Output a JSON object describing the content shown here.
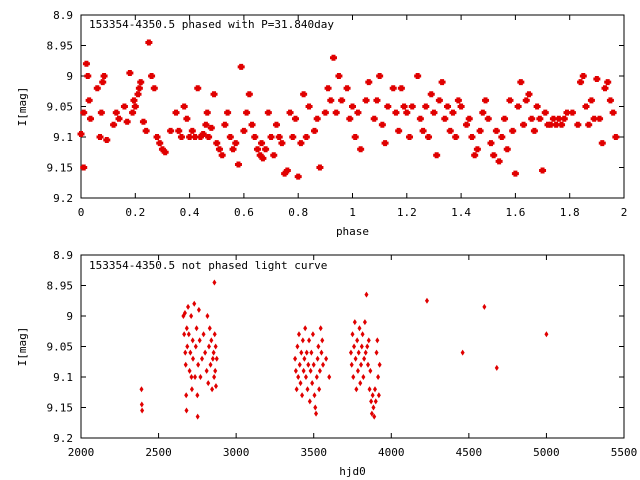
{
  "chart_data": [
    {
      "type": "scatter",
      "title": "153354-4350.5 phased with P=31.840day",
      "xlabel": "phase",
      "ylabel": "I[mag]",
      "xlim": [
        0,
        2
      ],
      "ylim": [
        8.9,
        9.2
      ],
      "y_inverted": true,
      "xticks": [
        "0",
        "0.2",
        "0.4",
        "0.6",
        "0.8",
        "1",
        "1.2",
        "1.4",
        "1.6",
        "1.8",
        "2"
      ],
      "yticks": [
        "8.9",
        "8.95",
        "9",
        "9.05",
        "9.1",
        "9.15",
        "9.2"
      ],
      "marker_color": "#e00000",
      "marker": "cross",
      "points": [
        [
          0.0,
          9.095
        ],
        [
          0.01,
          9.15
        ],
        [
          0.01,
          9.06
        ],
        [
          0.02,
          8.98
        ],
        [
          0.025,
          9.0
        ],
        [
          0.03,
          9.04
        ],
        [
          0.035,
          9.07
        ],
        [
          0.06,
          9.02
        ],
        [
          0.07,
          9.1
        ],
        [
          0.075,
          9.06
        ],
        [
          0.08,
          9.01
        ],
        [
          0.085,
          9.0
        ],
        [
          0.095,
          9.105
        ],
        [
          0.12,
          9.08
        ],
        [
          0.13,
          9.06
        ],
        [
          0.14,
          9.07
        ],
        [
          0.16,
          9.05
        ],
        [
          0.17,
          9.075
        ],
        [
          0.18,
          8.995
        ],
        [
          0.19,
          9.06
        ],
        [
          0.195,
          9.04
        ],
        [
          0.2,
          9.05
        ],
        [
          0.21,
          9.03
        ],
        [
          0.215,
          9.02
        ],
        [
          0.22,
          9.01
        ],
        [
          0.23,
          9.075
        ],
        [
          0.24,
          9.09
        ],
        [
          0.25,
          8.945
        ],
        [
          0.26,
          9.0
        ],
        [
          0.27,
          9.02
        ],
        [
          0.28,
          9.1
        ],
        [
          0.29,
          9.11
        ],
        [
          0.3,
          9.12
        ],
        [
          0.31,
          9.125
        ],
        [
          0.33,
          9.09
        ],
        [
          0.35,
          9.06
        ],
        [
          0.36,
          9.09
        ],
        [
          0.37,
          9.1
        ],
        [
          0.38,
          9.05
        ],
        [
          0.39,
          9.07
        ],
        [
          0.4,
          9.1
        ],
        [
          0.41,
          9.09
        ],
        [
          0.42,
          9.1
        ],
        [
          0.43,
          9.02
        ],
        [
          0.44,
          9.1
        ],
        [
          0.45,
          9.095
        ],
        [
          0.46,
          9.08
        ],
        [
          0.465,
          9.06
        ],
        [
          0.47,
          9.1
        ],
        [
          0.48,
          9.085
        ],
        [
          0.49,
          9.03
        ],
        [
          0.5,
          9.11
        ],
        [
          0.51,
          9.12
        ],
        [
          0.52,
          9.13
        ],
        [
          0.53,
          9.08
        ],
        [
          0.54,
          9.06
        ],
        [
          0.55,
          9.1
        ],
        [
          0.56,
          9.12
        ],
        [
          0.57,
          9.11
        ],
        [
          0.58,
          9.145
        ],
        [
          0.59,
          8.985
        ],
        [
          0.6,
          9.09
        ],
        [
          0.61,
          9.06
        ],
        [
          0.62,
          9.03
        ],
        [
          0.63,
          9.08
        ],
        [
          0.64,
          9.1
        ],
        [
          0.65,
          9.12
        ],
        [
          0.66,
          9.13
        ],
        [
          0.665,
          9.11
        ],
        [
          0.67,
          9.135
        ],
        [
          0.68,
          9.12
        ],
        [
          0.69,
          9.06
        ],
        [
          0.7,
          9.1
        ],
        [
          0.71,
          9.13
        ],
        [
          0.72,
          9.08
        ],
        [
          0.73,
          9.1
        ],
        [
          0.74,
          9.11
        ],
        [
          0.75,
          9.16
        ],
        [
          0.76,
          9.155
        ],
        [
          0.77,
          9.06
        ],
        [
          0.78,
          9.1
        ],
        [
          0.79,
          9.07
        ],
        [
          0.8,
          9.165
        ],
        [
          0.81,
          9.11
        ],
        [
          0.82,
          9.03
        ],
        [
          0.83,
          9.1
        ],
        [
          0.84,
          9.05
        ],
        [
          0.86,
          9.09
        ],
        [
          0.87,
          9.07
        ],
        [
          0.88,
          9.15
        ],
        [
          0.9,
          9.06
        ],
        [
          0.91,
          9.02
        ],
        [
          0.92,
          9.04
        ],
        [
          0.93,
          8.97
        ],
        [
          0.94,
          9.06
        ],
        [
          0.95,
          9.0
        ],
        [
          0.96,
          9.04
        ],
        [
          0.98,
          9.02
        ],
        [
          0.99,
          9.07
        ],
        [
          1.0,
          9.05
        ],
        [
          1.01,
          9.1
        ],
        [
          1.02,
          9.06
        ],
        [
          1.03,
          9.12
        ],
        [
          1.05,
          9.04
        ],
        [
          1.06,
          9.01
        ],
        [
          1.08,
          9.07
        ],
        [
          1.09,
          9.04
        ],
        [
          1.1,
          9.0
        ],
        [
          1.11,
          9.08
        ],
        [
          1.12,
          9.11
        ],
        [
          1.13,
          9.05
        ],
        [
          1.15,
          9.02
        ],
        [
          1.16,
          9.06
        ],
        [
          1.17,
          9.09
        ],
        [
          1.18,
          9.02
        ],
        [
          1.19,
          9.05
        ],
        [
          1.2,
          9.06
        ],
        [
          1.21,
          9.1
        ],
        [
          1.22,
          9.05
        ],
        [
          1.24,
          9.0
        ],
        [
          1.25,
          9.07
        ],
        [
          1.26,
          9.09
        ],
        [
          1.27,
          9.05
        ],
        [
          1.28,
          9.1
        ],
        [
          1.29,
          9.03
        ],
        [
          1.3,
          9.06
        ],
        [
          1.31,
          9.13
        ],
        [
          1.32,
          9.04
        ],
        [
          1.33,
          9.01
        ],
        [
          1.34,
          9.07
        ],
        [
          1.35,
          9.05
        ],
        [
          1.36,
          9.09
        ],
        [
          1.37,
          9.06
        ],
        [
          1.38,
          9.1
        ],
        [
          1.39,
          9.04
        ],
        [
          1.4,
          9.05
        ],
        [
          1.42,
          9.08
        ],
        [
          1.43,
          9.07
        ],
        [
          1.44,
          9.1
        ],
        [
          1.45,
          9.13
        ],
        [
          1.46,
          9.12
        ],
        [
          1.47,
          9.09
        ],
        [
          1.48,
          9.06
        ],
        [
          1.49,
          9.04
        ],
        [
          1.5,
          9.07
        ],
        [
          1.51,
          9.11
        ],
        [
          1.52,
          9.13
        ],
        [
          1.53,
          9.09
        ],
        [
          1.54,
          9.14
        ],
        [
          1.55,
          9.1
        ],
        [
          1.56,
          9.07
        ],
        [
          1.57,
          9.12
        ],
        [
          1.58,
          9.04
        ],
        [
          1.59,
          9.09
        ],
        [
          1.6,
          9.16
        ],
        [
          1.61,
          9.05
        ],
        [
          1.62,
          9.01
        ],
        [
          1.63,
          9.08
        ],
        [
          1.64,
          9.04
        ],
        [
          1.65,
          9.03
        ],
        [
          1.66,
          9.07
        ],
        [
          1.67,
          9.09
        ],
        [
          1.68,
          9.05
        ],
        [
          1.69,
          9.07
        ],
        [
          1.7,
          9.155
        ],
        [
          1.71,
          9.06
        ],
        [
          1.72,
          9.08
        ],
        [
          1.73,
          9.08
        ],
        [
          1.74,
          9.07
        ],
        [
          1.75,
          9.08
        ],
        [
          1.76,
          9.07
        ],
        [
          1.77,
          9.08
        ],
        [
          1.78,
          9.07
        ],
        [
          1.79,
          9.06
        ],
        [
          1.81,
          9.06
        ],
        [
          1.83,
          9.08
        ],
        [
          1.84,
          9.01
        ],
        [
          1.85,
          9.0
        ],
        [
          1.86,
          9.05
        ],
        [
          1.87,
          9.08
        ],
        [
          1.88,
          9.04
        ],
        [
          1.89,
          9.07
        ],
        [
          1.9,
          9.005
        ],
        [
          1.91,
          9.07
        ],
        [
          1.92,
          9.11
        ],
        [
          1.93,
          9.02
        ],
        [
          1.94,
          9.01
        ],
        [
          1.95,
          9.04
        ],
        [
          1.96,
          9.06
        ],
        [
          1.97,
          9.1
        ]
      ]
    },
    {
      "type": "scatter",
      "title": "153354-4350.5 not phased light curve",
      "xlabel": "hjd0",
      "ylabel": "I[mag]",
      "xlim": [
        2000,
        5500
      ],
      "ylim": [
        8.9,
        9.2
      ],
      "y_inverted": true,
      "xticks": [
        "2000",
        "2500",
        "3000",
        "3500",
        "4000",
        "4500",
        "5000",
        "5500"
      ],
      "yticks": [
        "8.9",
        "8.95",
        "9",
        "9.05",
        "9.1",
        "9.15",
        "9.2"
      ],
      "marker_color": "#e00000",
      "marker": "diamond",
      "points": [
        [
          2390,
          9.12
        ],
        [
          2392,
          9.145
        ],
        [
          2394,
          9.155
        ],
        [
          2660,
          9.0
        ],
        [
          2665,
          9.03
        ],
        [
          2670,
          8.995
        ],
        [
          2672,
          9.06
        ],
        [
          2675,
          9.08
        ],
        [
          2678,
          9.13
        ],
        [
          2680,
          9.155
        ],
        [
          2682,
          9.02
        ],
        [
          2685,
          9.05
        ],
        [
          2690,
          8.985
        ],
        [
          2695,
          9.03
        ],
        [
          2700,
          9.09
        ],
        [
          2705,
          9.06
        ],
        [
          2710,
          9.0
        ],
        [
          2712,
          9.1
        ],
        [
          2715,
          9.12
        ],
        [
          2720,
          9.04
        ],
        [
          2722,
          9.07
        ],
        [
          2730,
          8.98
        ],
        [
          2735,
          9.1
        ],
        [
          2740,
          9.05
        ],
        [
          2745,
          9.02
        ],
        [
          2750,
          9.13
        ],
        [
          2752,
          9.165
        ],
        [
          2755,
          9.08
        ],
        [
          2760,
          8.99
        ],
        [
          2765,
          9.04
        ],
        [
          2770,
          9.1
        ],
        [
          2780,
          9.07
        ],
        [
          2790,
          9.03
        ],
        [
          2800,
          9.06
        ],
        [
          2810,
          9.09
        ],
        [
          2815,
          9.0
        ],
        [
          2820,
          9.11
        ],
        [
          2825,
          9.05
        ],
        [
          2830,
          9.02
        ],
        [
          2835,
          9.08
        ],
        [
          2840,
          9.04
        ],
        [
          2845,
          9.12
        ],
        [
          2850,
          9.07
        ],
        [
          2855,
          9.06
        ],
        [
          2858,
          9.1
        ],
        [
          2860,
          8.945
        ],
        [
          2862,
          9.03
        ],
        [
          2865,
          9.09
        ],
        [
          2868,
          9.05
        ],
        [
          2870,
          9.115
        ],
        [
          2875,
          9.07
        ],
        [
          3380,
          9.07
        ],
        [
          3385,
          9.09
        ],
        [
          3390,
          9.12
        ],
        [
          3395,
          9.05
        ],
        [
          3400,
          9.1
        ],
        [
          3405,
          9.03
        ],
        [
          3410,
          9.08
        ],
        [
          3415,
          9.11
        ],
        [
          3420,
          9.06
        ],
        [
          3425,
          9.13
        ],
        [
          3430,
          9.04
        ],
        [
          3435,
          9.09
        ],
        [
          3440,
          9.07
        ],
        [
          3445,
          9.02
        ],
        [
          3450,
          9.1
        ],
        [
          3455,
          9.06
        ],
        [
          3460,
          9.12
        ],
        [
          3465,
          9.08
        ],
        [
          3470,
          9.04
        ],
        [
          3475,
          9.14
        ],
        [
          3480,
          9.09
        ],
        [
          3485,
          9.06
        ],
        [
          3490,
          9.11
        ],
        [
          3495,
          9.03
        ],
        [
          3500,
          9.08
        ],
        [
          3505,
          9.13
        ],
        [
          3510,
          9.15
        ],
        [
          3515,
          9.16
        ],
        [
          3520,
          9.1
        ],
        [
          3525,
          9.07
        ],
        [
          3530,
          9.05
        ],
        [
          3535,
          9.12
        ],
        [
          3540,
          9.09
        ],
        [
          3545,
          9.02
        ],
        [
          3550,
          9.06
        ],
        [
          3555,
          9.04
        ],
        [
          3560,
          9.08
        ],
        [
          3580,
          9.07
        ],
        [
          3600,
          9.1
        ],
        [
          3740,
          9.06
        ],
        [
          3745,
          9.08
        ],
        [
          3750,
          9.03
        ],
        [
          3755,
          9.1
        ],
        [
          3760,
          9.05
        ],
        [
          3765,
          9.01
        ],
        [
          3770,
          9.07
        ],
        [
          3775,
          9.12
        ],
        [
          3780,
          9.04
        ],
        [
          3785,
          9.09
        ],
        [
          3790,
          9.06
        ],
        [
          3795,
          9.02
        ],
        [
          3800,
          9.11
        ],
        [
          3805,
          9.08
        ],
        [
          3810,
          9.05
        ],
        [
          3815,
          9.03
        ],
        [
          3820,
          9.1
        ],
        [
          3825,
          9.07
        ],
        [
          3830,
          9.01
        ],
        [
          3835,
          9.06
        ],
        [
          3840,
          8.965
        ],
        [
          3845,
          9.05
        ],
        [
          3850,
          9.08
        ],
        [
          3855,
          9.04
        ],
        [
          3860,
          9.12
        ],
        [
          3865,
          9.09
        ],
        [
          3870,
          9.14
        ],
        [
          3875,
          9.16
        ],
        [
          3880,
          9.13
        ],
        [
          3885,
          9.15
        ],
        [
          3890,
          9.165
        ],
        [
          3895,
          9.12
        ],
        [
          3900,
          9.14
        ],
        [
          3905,
          9.06
        ],
        [
          3910,
          9.04
        ],
        [
          3915,
          9.1
        ],
        [
          3920,
          9.13
        ],
        [
          3925,
          9.08
        ],
        [
          4230,
          8.975
        ],
        [
          4460,
          9.06
        ],
        [
          4600,
          8.985
        ],
        [
          4680,
          9.085
        ],
        [
          5000,
          9.03
        ]
      ]
    }
  ]
}
